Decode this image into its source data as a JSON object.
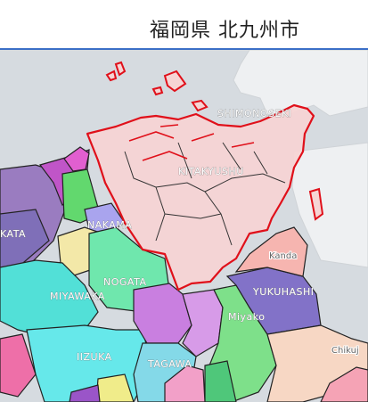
{
  "header": {
    "title": "福岡県 北九州市"
  },
  "map": {
    "highlight_color": "#e0101a",
    "labels": {
      "shimonoseki": "SHIMONOSEKI",
      "kitakyushu": "KITAKYUSHU",
      "nakama": "NAKAMA",
      "nogata": "NOGATA",
      "miyawaka": "MIYAWAKA",
      "kata": "KATA",
      "yukuhashi": "YUKUHASHI",
      "miyako": "Miyako",
      "kanda": "Kanda",
      "iizuka": "IIZUKA",
      "tagawa": "TAGAWA",
      "chikujo": "Chikuj"
    }
  }
}
